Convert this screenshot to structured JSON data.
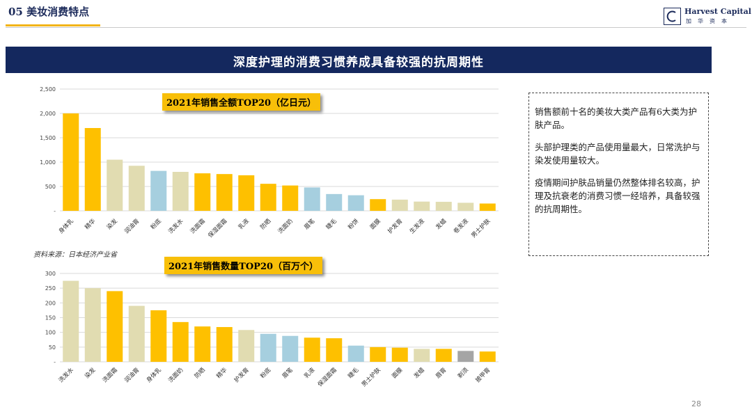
{
  "header": {
    "section_title": "05 美妆消费特点",
    "logo_name": "Harvest Capital",
    "logo_sub": "加华资本"
  },
  "banner": {
    "title": "深度护理的消费习惯养成具备较强的抗周期性"
  },
  "colors": {
    "gold": "#fec000",
    "beige": "#e1dcb1",
    "blue": "#a6cfdf",
    "gray": "#a5a5a5",
    "banner": "#14285e"
  },
  "chart_data": [
    {
      "type": "bar",
      "title": "2021年销售全额TOP20（亿日元）",
      "ylim": [
        0,
        2500
      ],
      "yticks": [
        "-",
        "500",
        "1,000",
        "1,500",
        "2,000",
        "2,500"
      ],
      "grid": true,
      "categories": [
        "身体乳",
        "精华",
        "染发",
        "润油膏",
        "粉底",
        "洗发水",
        "洗面霜",
        "保湿面霜",
        "乳液",
        "防晒",
        "洗面奶",
        "眉笔",
        "睫毛",
        "粉饼",
        "面膜",
        "护发膏",
        "生发液",
        "发蜡",
        "卷发液",
        "男士护肤"
      ],
      "values": [
        2000,
        1700,
        1050,
        925,
        820,
        800,
        770,
        755,
        730,
        555,
        520,
        480,
        345,
        320,
        240,
        230,
        190,
        185,
        165,
        150
      ],
      "colors": [
        "gold",
        "gold",
        "beige",
        "beige",
        "blue",
        "beige",
        "gold",
        "gold",
        "gold",
        "gold",
        "gold",
        "blue",
        "blue",
        "blue",
        "gold",
        "beige",
        "beige",
        "beige",
        "beige",
        "gold"
      ]
    },
    {
      "type": "bar",
      "title": "2021年销售数量TOP20（百万个）",
      "ylim": [
        0,
        300
      ],
      "yticks": [
        "-",
        "50",
        "100",
        "150",
        "200",
        "250",
        "300"
      ],
      "grid": true,
      "categories": [
        "洗发水",
        "染发",
        "洗面霜",
        "润油膏",
        "身体乳",
        "洗面奶",
        "防晒",
        "精华",
        "护发膏",
        "粉底",
        "眉笔",
        "乳液",
        "保湿面霜",
        "睫毛",
        "男士护肤",
        "面膜",
        "发蜡",
        "唇膏",
        "剃须",
        "披甲膏"
      ],
      "values": [
        275,
        250,
        240,
        190,
        175,
        135,
        120,
        118,
        108,
        95,
        88,
        82,
        80,
        55,
        50,
        48,
        44,
        44,
        37,
        35
      ],
      "colors": [
        "beige",
        "beige",
        "gold",
        "beige",
        "gold",
        "gold",
        "gold",
        "gold",
        "beige",
        "blue",
        "blue",
        "gold",
        "gold",
        "blue",
        "gold",
        "gold",
        "beige",
        "gold",
        "gray",
        "gold"
      ]
    }
  ],
  "source": "资料来源：日本经济产业省",
  "notes": [
    "销售额前十名的美妆大类产品有6大类为护肤产品。",
    "头部护理类的产品使用量最大，日常洗护与染发使用量较大。",
    "疫情期间护肤品销量仍然整体排名较高，护理及抗衰老的消费习惯一经培养，具备较强的抗周期性。"
  ],
  "page_number": "28"
}
